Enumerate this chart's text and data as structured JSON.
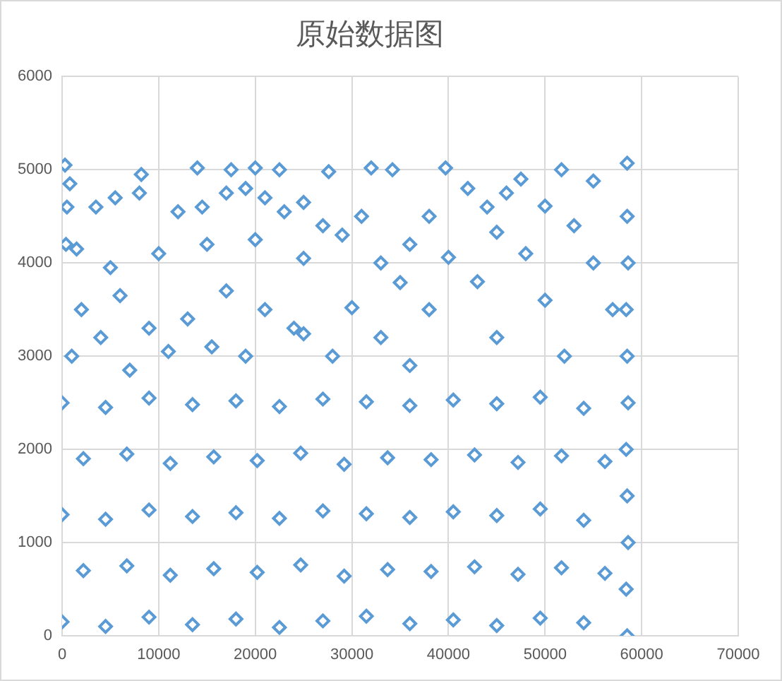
{
  "chart_data": {
    "type": "scatter",
    "title": "原始数据图",
    "color": "#5b9bd5",
    "marker": "diamond",
    "grid": true,
    "xlim": [
      0,
      70000
    ],
    "xticks": [
      0,
      10000,
      20000,
      30000,
      40000,
      50000,
      60000,
      70000
    ],
    "ylim": [
      0,
      6000
    ],
    "yticks": [
      0,
      1000,
      2000,
      3000,
      4000,
      5000,
      6000
    ],
    "x": [
      300,
      800,
      500,
      400,
      1500,
      3500,
      5500,
      8000,
      12000,
      14500,
      17000,
      19000,
      21000,
      23000,
      25000,
      27000,
      29000,
      31000,
      8200,
      14000,
      17500,
      20000,
      22500,
      27600,
      32000,
      34200,
      39700,
      42000,
      44000,
      46000,
      47500,
      51700,
      38000,
      36000,
      33000,
      5000,
      10000,
      15000,
      20000,
      25000,
      2000,
      6000,
      9000,
      13000,
      17000,
      21000,
      24000,
      1000,
      4000,
      11000,
      15500,
      19000,
      7000,
      25000,
      30000,
      35000,
      40000,
      45000,
      50000,
      55000,
      58500,
      58500,
      58400,
      58600,
      58500,
      58400,
      58600,
      58500,
      58400,
      58600,
      58500,
      28000,
      33000,
      38000,
      43000,
      48000,
      53000,
      36000,
      45000,
      50000,
      55000,
      52000,
      57000,
      0,
      4500,
      9000,
      13500,
      18000,
      22500,
      27000,
      31500,
      36000,
      40500,
      45000,
      49500,
      54000,
      2200,
      6700,
      11200,
      15700,
      20200,
      24700,
      29200,
      33700,
      38200,
      42700,
      47200,
      51700,
      56200,
      0,
      4500,
      9000,
      13500,
      18000,
      22500,
      27000,
      31500,
      36000,
      40500,
      45000,
      49500,
      54000,
      2200,
      6700,
      11200,
      15700,
      20200,
      24700,
      29200,
      33700,
      38200,
      42700,
      47200,
      51700,
      56200,
      0,
      4500,
      9000,
      13500,
      18000,
      22500,
      27000,
      31500,
      36000,
      40500,
      45000,
      49500,
      54000
    ],
    "values": [
      5050,
      4850,
      4600,
      4200,
      4150,
      4600,
      4700,
      4750,
      4550,
      4600,
      4750,
      4800,
      4700,
      4550,
      4650,
      4400,
      4300,
      4500,
      4950,
      5020,
      5000,
      5020,
      5000,
      4980,
      5020,
      5000,
      5020,
      4800,
      4600,
      4750,
      4900,
      5000,
      4500,
      4200,
      4000,
      3950,
      4100,
      4200,
      4250,
      4050,
      3500,
      3650,
      3300,
      3400,
      3700,
      3500,
      3300,
      3000,
      3200,
      3050,
      3100,
      3000,
      2850,
      3240,
      3520,
      3790,
      4060,
      4330,
      4610,
      4880,
      5070,
      0,
      500,
      1000,
      1500,
      2000,
      2500,
      3000,
      3500,
      4000,
      4500,
      3000,
      3200,
      3500,
      3800,
      4100,
      4400,
      2900,
      3200,
      3600,
      4000,
      3000,
      3500,
      150,
      100,
      200,
      120,
      180,
      90,
      160,
      210,
      130,
      170,
      110,
      190,
      140,
      700,
      750,
      650,
      720,
      680,
      760,
      640,
      710,
      690,
      740,
      660,
      730,
      670,
      1300,
      1250,
      1350,
      1280,
      1320,
      1260,
      1340,
      1310,
      1270,
      1330,
      1290,
      1360,
      1240,
      1900,
      1950,
      1850,
      1920,
      1880,
      1960,
      1840,
      1910,
      1890,
      1940,
      1860,
      1930,
      1870,
      2500,
      2450,
      2550,
      2480,
      2520,
      2460,
      2540,
      2510,
      2470,
      2530,
      2490,
      2560,
      2440
    ]
  }
}
